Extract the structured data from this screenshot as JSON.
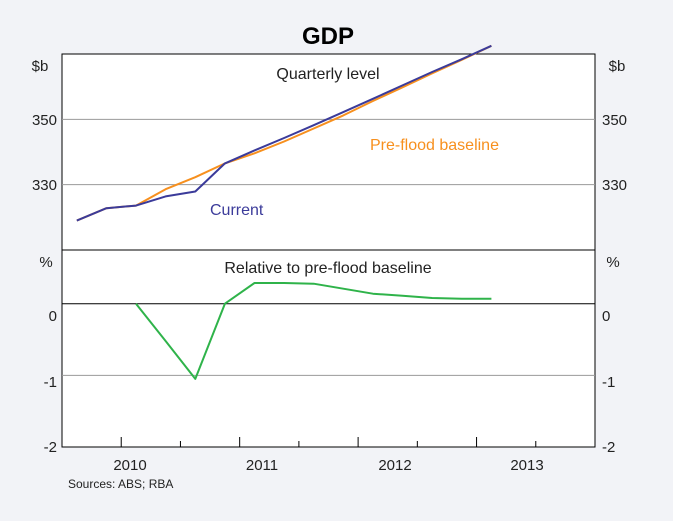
{
  "chart_data": {
    "title": "GDP",
    "source": "Sources: ABS; RBA",
    "x_tick_labels": [
      "2010",
      "2011",
      "2012",
      "2013"
    ],
    "panels": [
      {
        "type": "line",
        "title": "Quarterly level",
        "unit": "$b",
        "yticks": [
          330,
          350
        ],
        "ylim": [
          310,
          370
        ],
        "grid": true,
        "x": [
          "2009-Q3",
          "2009-Q4",
          "2010-Q1",
          "2010-Q2",
          "2010-Q3",
          "2010-Q4",
          "2011-Q1",
          "2011-Q2",
          "2011-Q3",
          "2011-Q4",
          "2012-Q1",
          "2012-Q2",
          "2012-Q3",
          "2012-Q4",
          "2013-Q1"
        ],
        "series": [
          {
            "name": "Current",
            "color": "#3b3b9a",
            "values": [
              319,
              322.8,
              323.6,
              326.4,
              327.9,
              336.5,
              340.5,
              344.3,
              348.2,
              352.2,
              356.3,
              360.4,
              364.5,
              368.4,
              372.5
            ]
          },
          {
            "name": "Pre-flood baseline",
            "color": "#f7901e",
            "values": [
              319,
              322.8,
              323.6,
              328.6,
              332.3,
              336.5,
              339.6,
              343.2,
              347.2,
              351.2,
              355.6,
              359.8,
              364.1,
              368.2,
              372.5
            ]
          }
        ]
      },
      {
        "type": "line",
        "title": "Relative to pre-flood baseline",
        "unit": "%",
        "yticks": [
          -2,
          -1,
          0
        ],
        "ylim": [
          -2,
          0.75
        ],
        "grid": true,
        "x": [
          "2010-Q1",
          "2010-Q2",
          "2010-Q3",
          "2010-Q4",
          "2011-Q1",
          "2011-Q2",
          "2011-Q3",
          "2011-Q4",
          "2012-Q1",
          "2012-Q2",
          "2012-Q3",
          "2012-Q4",
          "2013-Q1"
        ],
        "series": [
          {
            "color": "#2fb34a",
            "values": [
              0,
              -0.52,
              -1.05,
              0,
              0.29,
              0.29,
              0.28,
              0.21,
              0.14,
              0.11,
              0.08,
              0.07,
              0.07
            ]
          }
        ]
      }
    ]
  }
}
